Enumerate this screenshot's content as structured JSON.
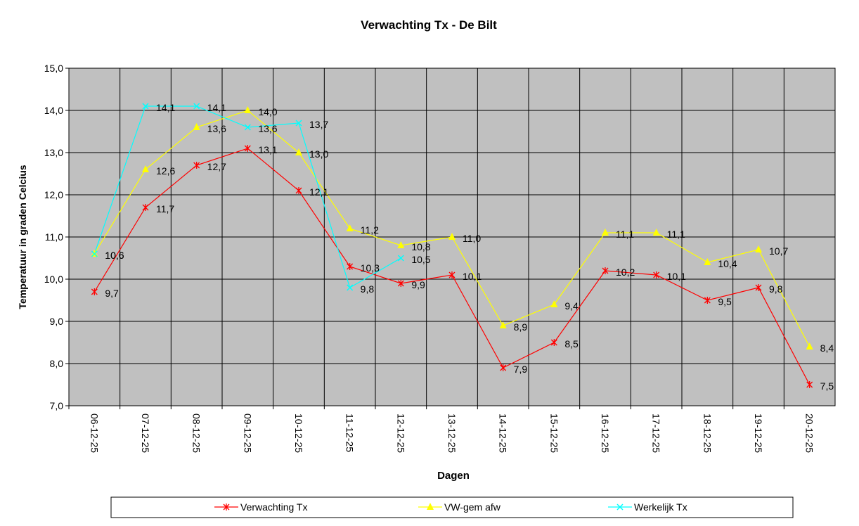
{
  "chart_data": {
    "type": "line",
    "title": "Verwachting Tx - De Bilt",
    "x_label": "Dagen",
    "y_label": "Temperatuur in graden Celcius",
    "categories": [
      "06-12-25",
      "07-12-25",
      "08-12-25",
      "09-12-25",
      "10-12-25",
      "11-12-25",
      "12-12-25",
      "13-12-25",
      "14-12-25",
      "15-12-25",
      "16-12-25",
      "17-12-25",
      "18-12-25",
      "19-12-25",
      "20-12-25"
    ],
    "ylim": [
      7,
      15
    ],
    "yticks": [
      {
        "value": 7,
        "label": "7,0"
      },
      {
        "value": 8,
        "label": "8,0"
      },
      {
        "value": 9,
        "label": "9,0"
      },
      {
        "value": 10,
        "label": "10,0"
      },
      {
        "value": 11,
        "label": "11,0"
      },
      {
        "value": 12,
        "label": "12,0"
      },
      {
        "value": 13,
        "label": "13,0"
      },
      {
        "value": 14,
        "label": "14,0"
      },
      {
        "value": 15,
        "label": "15,0"
      }
    ],
    "grid": true,
    "series": [
      {
        "name": "Verwachting Tx",
        "color": "#ff0000",
        "marker": "asterisk",
        "values": [
          9.7,
          11.7,
          12.7,
          13.1,
          12.1,
          10.3,
          9.9,
          10.1,
          7.9,
          8.5,
          10.2,
          10.1,
          9.5,
          9.8,
          7.5
        ],
        "value_labels": [
          "9,7",
          "11,7",
          "12,7",
          "13,1",
          "12,1",
          "10,3",
          "9,9",
          "10,1",
          "7,9",
          "8,5",
          "10,2",
          "10,1",
          "9,5",
          "9,8",
          "7,5"
        ]
      },
      {
        "name": "VW-gem afw",
        "color": "#ffff00",
        "marker": "triangle",
        "values": [
          10.6,
          12.6,
          13.6,
          14.0,
          13.0,
          11.2,
          10.8,
          11.0,
          8.9,
          9.4,
          11.1,
          11.1,
          10.4,
          10.7,
          8.4
        ],
        "value_labels": [
          "10,6",
          "12,6",
          "13,6",
          "14,0",
          "13,0",
          "11,2",
          "10,8",
          "11,0",
          "8,9",
          "9,4",
          "11,1",
          "11,1",
          "10,4",
          "10,7",
          "8,4"
        ]
      },
      {
        "name": "Werkelijk Tx",
        "color": "#00ffff",
        "marker": "x",
        "values": [
          10.6,
          14.1,
          14.1,
          13.6,
          13.7,
          9.8,
          10.5,
          null,
          null,
          null,
          null,
          null,
          null,
          null,
          null
        ],
        "value_labels": [
          "10,6",
          "14,1",
          "14,1",
          "13,6",
          "13,7",
          "9,8",
          "10,5",
          null,
          null,
          null,
          null,
          null,
          null,
          null,
          null
        ]
      }
    ]
  }
}
